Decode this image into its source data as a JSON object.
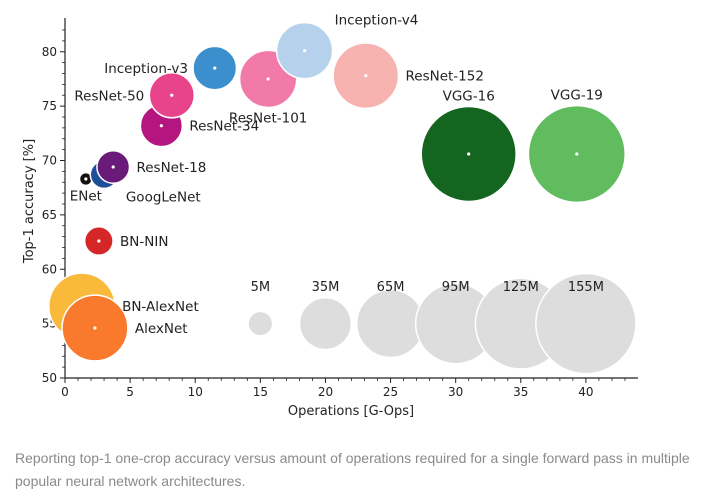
{
  "chart_data": {
    "type": "scatter",
    "subtype": "bubble",
    "xlabel": "Operations [G-Ops]",
    "ylabel": "Top-1 accuracy [%]",
    "xlim": [
      0,
      44
    ],
    "ylim": [
      50,
      82
    ],
    "xticks": [
      0,
      5,
      10,
      15,
      20,
      25,
      30,
      35,
      40
    ],
    "yticks": [
      50,
      55,
      60,
      65,
      70,
      75,
      80
    ],
    "grid": false,
    "points": [
      {
        "name": "BN-AlexNet",
        "ops": 1.3,
        "accuracy": 56.6,
        "params_m": 62,
        "color": "#f9b93a",
        "label_side": "right"
      },
      {
        "name": "AlexNet",
        "ops": 2.3,
        "accuracy": 54.6,
        "params_m": 61,
        "color": "#f97a2c",
        "label_side": "right"
      },
      {
        "name": "BN-NIN",
        "ops": 2.6,
        "accuracy": 62.6,
        "params_m": 7.6,
        "color": "#d62728",
        "label_side": "right"
      },
      {
        "name": "ENet",
        "ops": 1.6,
        "accuracy": 68.3,
        "params_m": 0.4,
        "color": "#111111",
        "label_side": "below"
      },
      {
        "name": "GoogLeNet",
        "ops": 3.0,
        "accuracy": 68.7,
        "params_m": 7,
        "color": "#1f4e99",
        "label_side": "below-right"
      },
      {
        "name": "ResNet-18",
        "ops": 3.7,
        "accuracy": 69.4,
        "params_m": 11,
        "color": "#6a1b7a",
        "label_side": "right"
      },
      {
        "name": "ResNet-34",
        "ops": 7.4,
        "accuracy": 73.2,
        "params_m": 21,
        "color": "#b5157f",
        "label_side": "right"
      },
      {
        "name": "ResNet-50",
        "ops": 8.2,
        "accuracy": 76.0,
        "params_m": 25,
        "color": "#e8448c",
        "label_side": "left"
      },
      {
        "name": "Inception-v3",
        "ops": 11.5,
        "accuracy": 78.5,
        "params_m": 23,
        "color": "#3a8fcc",
        "label_side": "left"
      },
      {
        "name": "ResNet-101",
        "ops": 15.6,
        "accuracy": 77.5,
        "params_m": 44,
        "color": "#f27aa8",
        "label_side": "below"
      },
      {
        "name": "Inception-v4",
        "ops": 18.4,
        "accuracy": 80.1,
        "params_m": 42,
        "color": "#b6d1ec",
        "label_side": "above-right"
      },
      {
        "name": "ResNet-152",
        "ops": 23.1,
        "accuracy": 77.8,
        "params_m": 60,
        "color": "#f6b3b0",
        "label_side": "right"
      },
      {
        "name": "VGG-16",
        "ops": 31.0,
        "accuracy": 70.6,
        "params_m": 138,
        "color": "#13651f",
        "label_side": "above"
      },
      {
        "name": "VGG-19",
        "ops": 39.3,
        "accuracy": 70.6,
        "params_m": 144,
        "color": "#61bb5f",
        "label_side": "above"
      }
    ],
    "size_legend": [
      {
        "label": "5M",
        "ops": 15.0,
        "accuracy": 55,
        "params_m": 5
      },
      {
        "label": "35M",
        "ops": 20.0,
        "accuracy": 55,
        "params_m": 35
      },
      {
        "label": "65M",
        "ops": 25.0,
        "accuracy": 55,
        "params_m": 65
      },
      {
        "label": "95M",
        "ops": 30.0,
        "accuracy": 55,
        "params_m": 95
      },
      {
        "label": "125M",
        "ops": 35.0,
        "accuracy": 55,
        "params_m": 125
      },
      {
        "label": "155M",
        "ops": 40.0,
        "accuracy": 55,
        "params_m": 155
      }
    ],
    "legend_color": "#dddddd"
  },
  "caption": "Reporting top-1 one-crop accuracy versus amount of operations required for a single forward pass in multiple popular neural network architectures."
}
